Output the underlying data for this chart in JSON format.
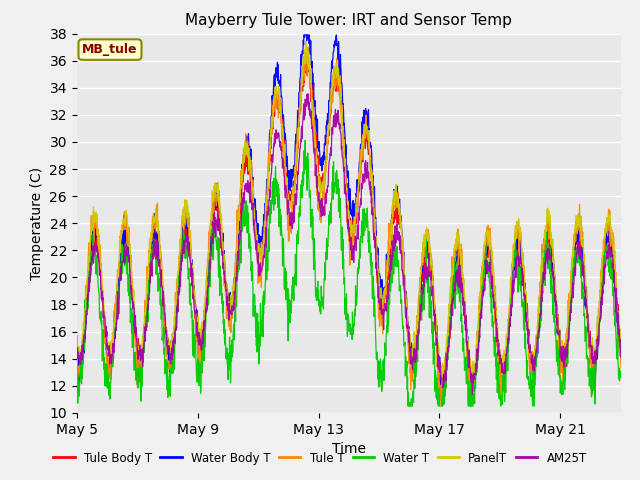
{
  "title": "Mayberry Tule Tower: IRT and Sensor Temp",
  "xlabel": "Time",
  "ylabel": "Temperature (C)",
  "ylim": [
    10,
    38
  ],
  "yticks": [
    10,
    12,
    14,
    16,
    18,
    20,
    22,
    24,
    26,
    28,
    30,
    32,
    34,
    36,
    38
  ],
  "fig_bg_color": "#f0f0f0",
  "plot_bg_color": "#e8e8e8",
  "legend_labels": [
    "Tule Body T",
    "Water Body T",
    "Tule T",
    "Water T",
    "PanelT",
    "AM25T"
  ],
  "legend_colors": [
    "#ff0000",
    "#0000ff",
    "#ff8800",
    "#00cc00",
    "#cccc00",
    "#aa00aa"
  ],
  "annotation_text": "MB_tule",
  "annotation_bg": "#ffffcc",
  "annotation_border": "#888800",
  "annotation_text_color": "#880000",
  "grid_color": "#ffffff",
  "title_fontsize": 11,
  "label_fontsize": 10,
  "tick_fontsize": 10,
  "n_days": 18,
  "start_day": 5,
  "x_ticks_days": [
    5,
    9,
    13,
    17,
    21
  ],
  "x_tick_labels": [
    "May 5",
    "May 9",
    "May 13",
    "May 17",
    "May 21"
  ]
}
